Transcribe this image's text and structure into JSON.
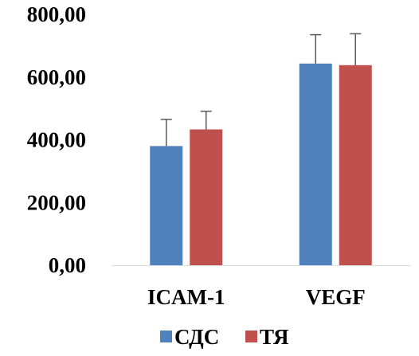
{
  "chart_data": {
    "type": "bar",
    "title": "",
    "xlabel": "",
    "ylabel": "",
    "categories": [
      "ICAM-1",
      "VEGF"
    ],
    "series": [
      {
        "name": "СДС",
        "color": "#4f81bd",
        "values": [
          380,
          643
        ],
        "error": [
          85,
          92
        ]
      },
      {
        "name": "ТЯ",
        "color": "#c0504d",
        "values": [
          433,
          638
        ],
        "error": [
          58,
          100
        ]
      }
    ],
    "ylim": [
      0,
      800
    ],
    "yticks": [
      0,
      200,
      400,
      600,
      800
    ],
    "ytick_labels": [
      "0,00",
      "200,00",
      "400,00",
      "600,00",
      "800,00"
    ],
    "grid": false,
    "legend_position": "bottom-center",
    "error_bar_color": "#595959"
  }
}
